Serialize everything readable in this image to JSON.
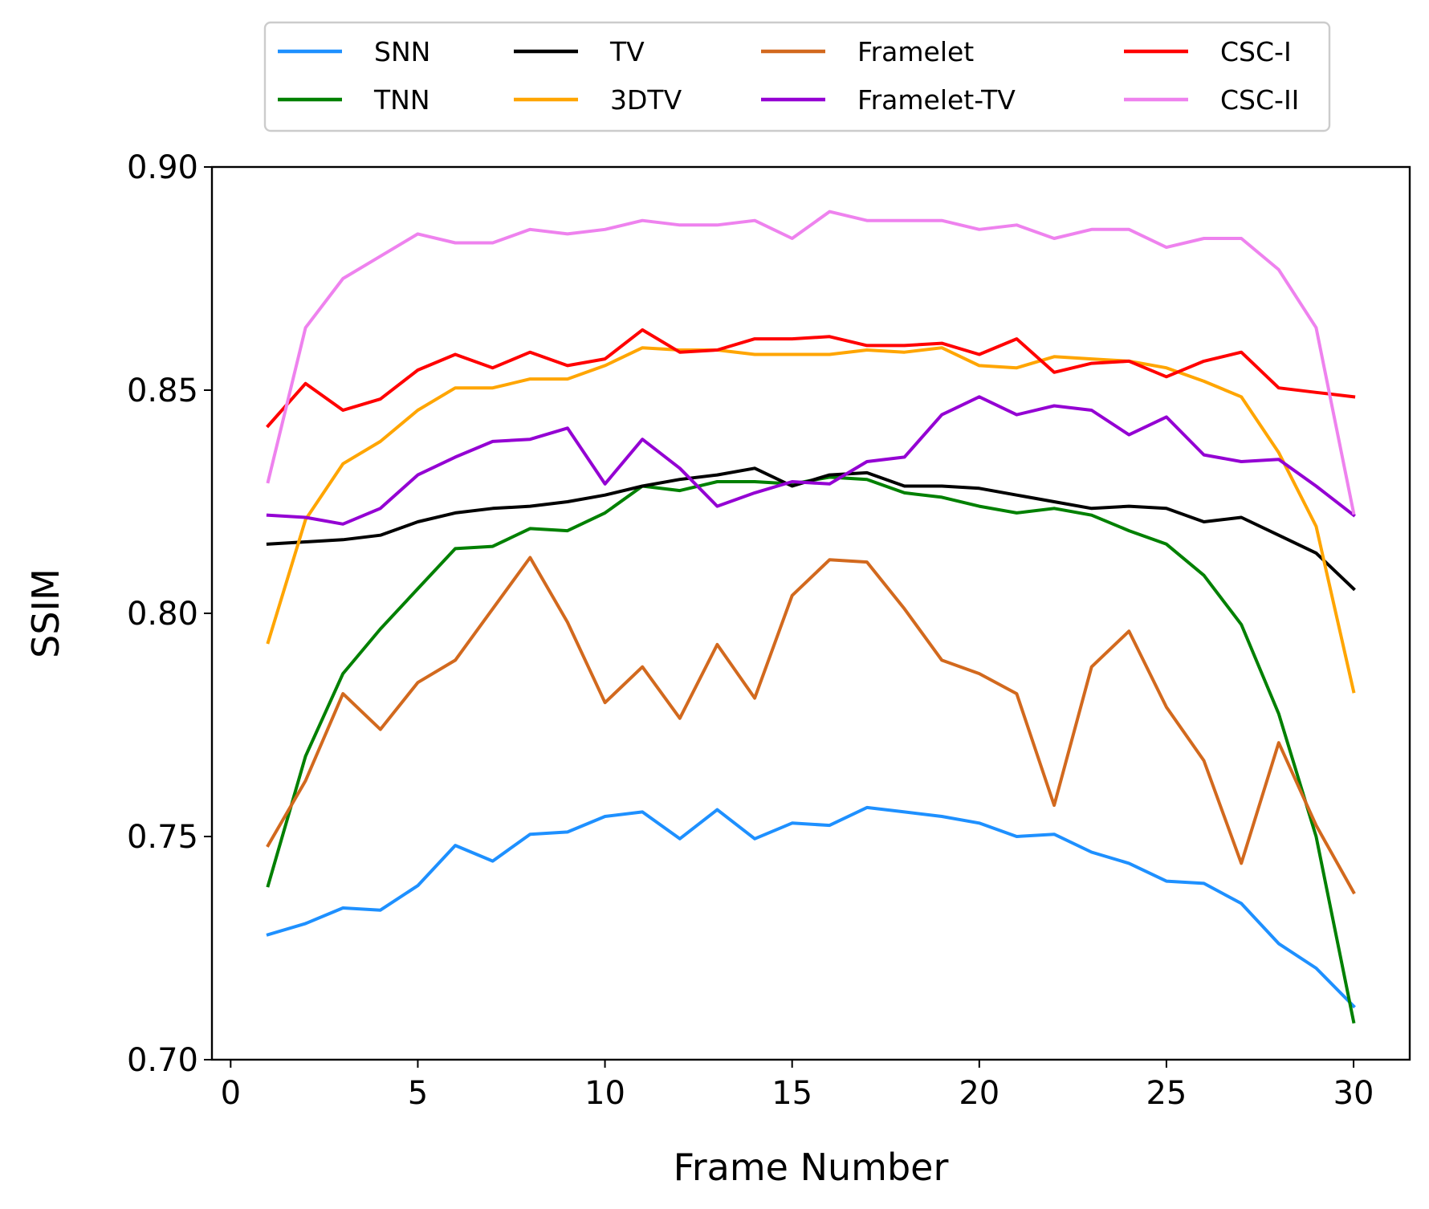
{
  "chart_data": {
    "type": "line",
    "title": "",
    "xlabel": "Frame Number",
    "ylabel": "SSIM",
    "xlim": [
      -0.5,
      31.5
    ],
    "ylim": [
      0.7,
      0.9
    ],
    "xticks": [
      0,
      5,
      10,
      15,
      20,
      25,
      30
    ],
    "xtick_labels": [
      "0",
      "5",
      "10",
      "15",
      "20",
      "25",
      "30"
    ],
    "yticks": [
      0.7,
      0.75,
      0.8,
      0.85,
      0.9
    ],
    "ytick_labels": [
      "0.70",
      "0.75",
      "0.80",
      "0.85",
      "0.90"
    ],
    "grid": false,
    "legend_position": "top-center, outside plot, 4 columns",
    "x": [
      1,
      2,
      3,
      4,
      5,
      6,
      7,
      8,
      9,
      10,
      11,
      12,
      13,
      14,
      15,
      16,
      17,
      18,
      19,
      20,
      21,
      22,
      23,
      24,
      25,
      26,
      27,
      28,
      29,
      30
    ],
    "series": [
      {
        "name": "SNN",
        "color": "#1e90ff",
        "values": [
          0.728,
          0.7305,
          0.734,
          0.7335,
          0.739,
          0.748,
          0.7445,
          0.7505,
          0.751,
          0.7545,
          0.7555,
          0.7495,
          0.756,
          0.7495,
          0.753,
          0.7525,
          0.7565,
          0.7555,
          0.7545,
          0.753,
          0.75,
          0.7505,
          0.7465,
          0.744,
          0.74,
          0.7395,
          0.735,
          0.726,
          0.7205,
          0.712
        ]
      },
      {
        "name": "TNN",
        "color": "#008000",
        "values": [
          0.739,
          0.768,
          0.7865,
          0.7965,
          0.8055,
          0.8145,
          0.815,
          0.819,
          0.8185,
          0.8225,
          0.8285,
          0.8275,
          0.8295,
          0.8295,
          0.829,
          0.8305,
          0.83,
          0.827,
          0.826,
          0.824,
          0.8225,
          0.8235,
          0.822,
          0.8185,
          0.8155,
          0.8085,
          0.7975,
          0.7775,
          0.75,
          0.7085
        ]
      },
      {
        "name": "TV",
        "color": "#000000",
        "values": [
          0.8155,
          0.816,
          0.8165,
          0.8175,
          0.8205,
          0.8225,
          0.8235,
          0.824,
          0.825,
          0.8265,
          0.8285,
          0.83,
          0.831,
          0.8325,
          0.8285,
          0.831,
          0.8315,
          0.8285,
          0.8285,
          0.828,
          0.8265,
          0.825,
          0.8235,
          0.824,
          0.8235,
          0.8205,
          0.8215,
          0.8175,
          0.8135,
          0.8055
        ]
      },
      {
        "name": "3DTV",
        "color": "#ffa500",
        "values": [
          0.7935,
          0.821,
          0.8335,
          0.8385,
          0.8455,
          0.8505,
          0.8505,
          0.8525,
          0.8525,
          0.8555,
          0.8595,
          0.859,
          0.859,
          0.858,
          0.858,
          0.858,
          0.859,
          0.8585,
          0.8595,
          0.8555,
          0.855,
          0.8575,
          0.857,
          0.8565,
          0.855,
          0.852,
          0.8485,
          0.836,
          0.8195,
          0.7825
        ]
      },
      {
        "name": "Framelet",
        "color": "#d2691e",
        "values": [
          0.748,
          0.7625,
          0.782,
          0.774,
          0.7845,
          0.7895,
          0.801,
          0.8125,
          0.798,
          0.78,
          0.788,
          0.7765,
          0.793,
          0.781,
          0.804,
          0.812,
          0.8115,
          0.801,
          0.7895,
          0.7865,
          0.782,
          0.757,
          0.788,
          0.796,
          0.779,
          0.767,
          0.744,
          0.771,
          0.7525,
          0.7375
        ]
      },
      {
        "name": "Framelet-TV",
        "color": "#9400d3",
        "values": [
          0.822,
          0.8215,
          0.82,
          0.8235,
          0.831,
          0.835,
          0.8385,
          0.839,
          0.8415,
          0.829,
          0.839,
          0.8325,
          0.824,
          0.827,
          0.8295,
          0.829,
          0.834,
          0.835,
          0.8445,
          0.8485,
          0.8445,
          0.8465,
          0.8455,
          0.84,
          0.844,
          0.8355,
          0.834,
          0.8345,
          0.8285,
          0.822
        ]
      },
      {
        "name": "CSC-I",
        "color": "#ff0000",
        "values": [
          0.842,
          0.8515,
          0.8455,
          0.848,
          0.8545,
          0.858,
          0.855,
          0.8585,
          0.8555,
          0.857,
          0.8635,
          0.8585,
          0.859,
          0.8615,
          0.8615,
          0.862,
          0.86,
          0.86,
          0.8605,
          0.858,
          0.8615,
          0.854,
          0.856,
          0.8565,
          0.853,
          0.8565,
          0.8585,
          0.8505,
          0.8495,
          0.8485
        ]
      },
      {
        "name": "CSC-II",
        "color": "#ee82ee",
        "values": [
          0.8295,
          0.864,
          0.875,
          0.88,
          0.885,
          0.883,
          0.883,
          0.886,
          0.885,
          0.886,
          0.888,
          0.887,
          0.887,
          0.888,
          0.884,
          0.89,
          0.888,
          0.888,
          0.888,
          0.886,
          0.887,
          0.884,
          0.886,
          0.886,
          0.882,
          0.884,
          0.884,
          0.877,
          0.864,
          0.8225
        ]
      }
    ]
  }
}
